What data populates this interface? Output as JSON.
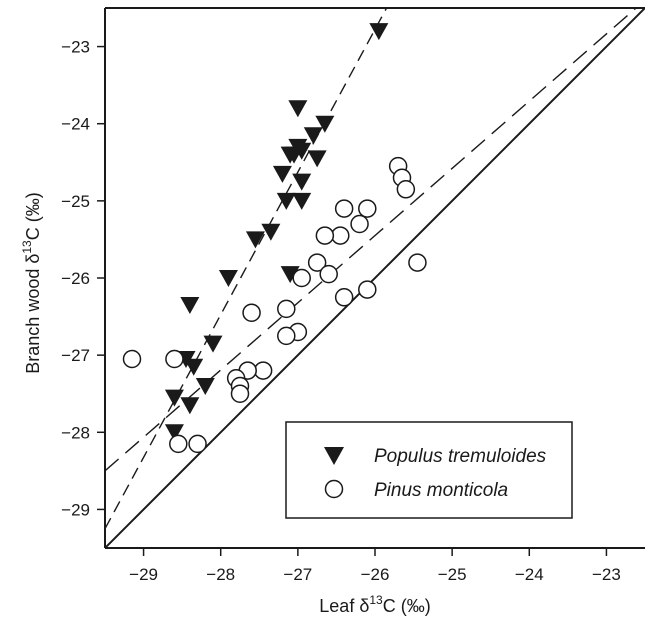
{
  "chart_data": {
    "type": "scatter",
    "xlabel": {
      "pre": "Leaf δ",
      "sup": "13",
      "post": "C (‰)"
    },
    "ylabel": {
      "pre": "Branch wood δ",
      "sup": "13",
      "post": "C (‰)"
    },
    "xlim": [
      -29.5,
      -22.5
    ],
    "ylim": [
      -29.5,
      -22.5
    ],
    "xticks": [
      -29,
      -28,
      -27,
      -26,
      -25,
      -24,
      -23
    ],
    "yticks": [
      -29,
      -28,
      -27,
      -26,
      -25,
      -24,
      -23
    ],
    "tick_labels": [
      "−29",
      "−28",
      "−27",
      "−26",
      "−25",
      "−24",
      "−23"
    ],
    "grid": false,
    "legend_position": "bottom-right",
    "series": [
      {
        "name": "Populus tremuloides",
        "marker": "filled-down-triangle",
        "color": "#1a1a1a",
        "points": [
          [
            -25.95,
            -22.8
          ],
          [
            -27.0,
            -23.8
          ],
          [
            -27.0,
            -24.3
          ],
          [
            -26.95,
            -24.35
          ],
          [
            -27.05,
            -24.4
          ],
          [
            -26.8,
            -24.15
          ],
          [
            -26.65,
            -24.0
          ],
          [
            -26.75,
            -24.45
          ],
          [
            -27.1,
            -24.4
          ],
          [
            -27.2,
            -24.65
          ],
          [
            -26.95,
            -24.75
          ],
          [
            -27.15,
            -25.0
          ],
          [
            -26.95,
            -25.0
          ],
          [
            -27.35,
            -25.4
          ],
          [
            -27.55,
            -25.5
          ],
          [
            -27.1,
            -25.95
          ],
          [
            -27.9,
            -26.0
          ],
          [
            -28.4,
            -26.35
          ],
          [
            -28.1,
            -26.85
          ],
          [
            -28.45,
            -27.05
          ],
          [
            -28.35,
            -27.15
          ],
          [
            -28.2,
            -27.4
          ],
          [
            -28.6,
            -27.55
          ],
          [
            -28.4,
            -27.65
          ],
          [
            -28.6,
            -28.0
          ]
        ]
      },
      {
        "name": "Pinus monticola",
        "marker": "open-circle",
        "color": "#1a1a1a",
        "points": [
          [
            -25.7,
            -24.55
          ],
          [
            -25.65,
            -24.7
          ],
          [
            -25.6,
            -24.85
          ],
          [
            -26.4,
            -25.1
          ],
          [
            -26.1,
            -25.1
          ],
          [
            -26.2,
            -25.3
          ],
          [
            -26.45,
            -25.45
          ],
          [
            -26.65,
            -25.45
          ],
          [
            -25.45,
            -25.8
          ],
          [
            -26.75,
            -25.8
          ],
          [
            -26.6,
            -25.95
          ],
          [
            -26.95,
            -26.0
          ],
          [
            -26.1,
            -26.15
          ],
          [
            -26.4,
            -26.25
          ],
          [
            -27.15,
            -26.4
          ],
          [
            -27.6,
            -26.45
          ],
          [
            -27.0,
            -26.7
          ],
          [
            -27.15,
            -26.75
          ],
          [
            -29.15,
            -27.05
          ],
          [
            -28.6,
            -27.05
          ],
          [
            -27.45,
            -27.2
          ],
          [
            -27.65,
            -27.2
          ],
          [
            -27.8,
            -27.3
          ],
          [
            -27.75,
            -27.4
          ],
          [
            -27.75,
            -27.5
          ],
          [
            -28.55,
            -28.15
          ],
          [
            -28.3,
            -28.15
          ]
        ]
      }
    ],
    "lines": [
      {
        "style": "solid",
        "points": [
          [
            -29.5,
            -29.5
          ],
          [
            -22.5,
            -22.5
          ]
        ]
      },
      {
        "style": "long-dash",
        "points": [
          [
            -29.5,
            -28.5
          ],
          [
            -22.5,
            -22.4
          ]
        ]
      },
      {
        "style": "dash",
        "points": [
          [
            -29.5,
            -29.25
          ],
          [
            -25.85,
            -22.5
          ]
        ]
      }
    ]
  }
}
